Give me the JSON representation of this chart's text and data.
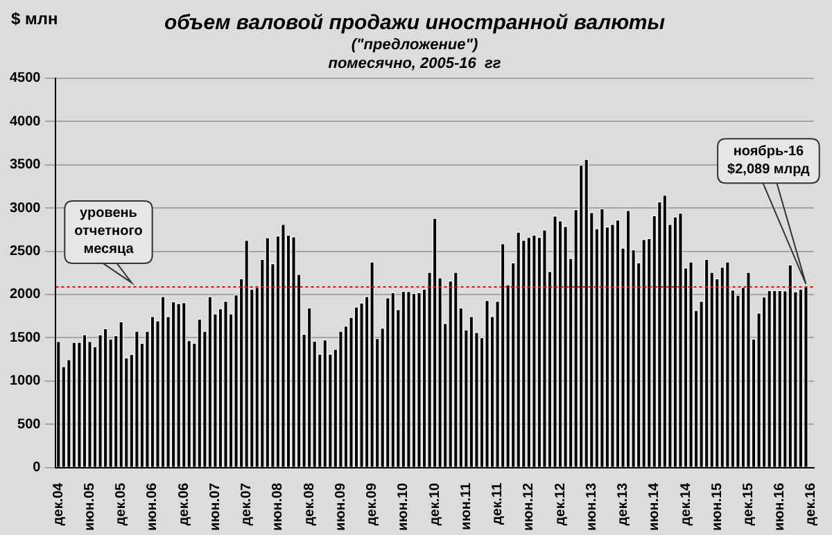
{
  "chart_data": {
    "type": "bar",
    "title": "объем валовой продажи иностранной валюты",
    "subtitle": "(\"предложение\")\nпомесячно, 2005-16  гг",
    "ylabel": "$ млн",
    "categories": [
      "дек.04",
      null,
      null,
      null,
      null,
      null,
      "июн.05",
      null,
      null,
      null,
      null,
      null,
      "дек.05",
      null,
      null,
      null,
      null,
      null,
      "июн.06",
      null,
      null,
      null,
      null,
      null,
      "дек.06",
      null,
      null,
      null,
      null,
      null,
      "июн.07",
      null,
      null,
      null,
      null,
      null,
      "дек.07",
      null,
      null,
      null,
      null,
      null,
      "июн.08",
      null,
      null,
      null,
      null,
      null,
      "дек.08",
      null,
      null,
      null,
      null,
      null,
      "июн.09",
      null,
      null,
      null,
      null,
      null,
      "дек.09",
      null,
      null,
      null,
      null,
      null,
      "июн.10",
      null,
      null,
      null,
      null,
      null,
      "дек.10",
      null,
      null,
      null,
      null,
      null,
      "июн.11",
      null,
      null,
      null,
      null,
      null,
      "дек.11",
      null,
      null,
      null,
      null,
      null,
      "июн.12",
      null,
      null,
      null,
      null,
      null,
      "дек.12",
      null,
      null,
      null,
      null,
      null,
      "июн.13",
      null,
      null,
      null,
      null,
      null,
      "дек.13",
      null,
      null,
      null,
      null,
      null,
      "июн.14",
      null,
      null,
      null,
      null,
      null,
      "дек.14",
      null,
      null,
      null,
      null,
      null,
      "июн.15",
      null,
      null,
      null,
      null,
      null,
      "дек.15",
      null,
      null,
      null,
      null,
      null,
      "июн.16",
      null,
      null,
      null,
      null,
      null,
      "дек.16"
    ],
    "values": [
      1460,
      1170,
      1250,
      1450,
      1450,
      1540,
      1460,
      1400,
      1540,
      1610,
      1490,
      1530,
      1690,
      1270,
      1310,
      1580,
      1440,
      1580,
      1750,
      1700,
      1980,
      1750,
      1920,
      1900,
      1910,
      1470,
      1440,
      1720,
      1580,
      1980,
      1780,
      1840,
      1925,
      1780,
      2000,
      2185,
      2630,
      2065,
      2085,
      2410,
      2660,
      2360,
      2680,
      2815,
      2690,
      2670,
      2235,
      1545,
      1850,
      1465,
      1315,
      1480,
      1315,
      1370,
      1580,
      1640,
      1740,
      1860,
      1905,
      1980,
      2380,
      1495,
      1615,
      1965,
      2025,
      1830,
      2040,
      2040,
      2015,
      2025,
      2065,
      2260,
      2885,
      2195,
      1670,
      2160,
      2260,
      1850,
      1595,
      1750,
      1565,
      1505,
      1935,
      1750,
      1925,
      2590,
      2115,
      2370,
      2725,
      2630,
      2665,
      2690,
      2665,
      2750,
      2270,
      2910,
      2855,
      2790,
      2420,
      2985,
      3500,
      3565,
      2950,
      2765,
      2995,
      2785,
      2815,
      2865,
      2540,
      2975,
      2520,
      2370,
      2640,
      2650,
      2915,
      3075,
      3150,
      2815,
      2900,
      2945,
      2310,
      2380,
      1820,
      1925,
      2410,
      2260,
      2185,
      2320,
      2380,
      2055,
      1995,
      2085,
      2260,
      1490,
      1790,
      1975,
      2050,
      2050,
      2050,
      2045,
      2345,
      2035,
      2065,
      2089,
      null
    ],
    "color": "#000000",
    "ylim": [
      0,
      4500
    ],
    "yticks": [
      0,
      500,
      1000,
      1500,
      2000,
      2500,
      3000,
      3500,
      4000,
      4500
    ],
    "grid": "y",
    "legend": false,
    "ref_lines": [
      {
        "axis": "y",
        "value": 2089,
        "label": "уровень\nотчетного\nмесяца",
        "color": "#ff0000",
        "line_style": "dotted"
      }
    ],
    "annotations": [
      "ноябрь-16\n$2,089 млрд"
    ]
  }
}
